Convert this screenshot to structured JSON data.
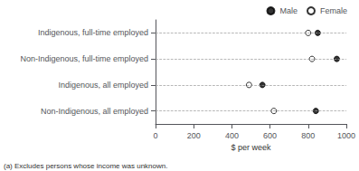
{
  "chart_data": {
    "type": "scatter",
    "categories": [
      "Indigenous, full-time employed",
      "Non-Indigenous, full-time employed",
      "Indigenous, all employed",
      "Non-Indigenous, all employed"
    ],
    "series": [
      {
        "name": "Male",
        "color": "#000000",
        "marker": "circle",
        "values": [
          850,
          950,
          560,
          840
        ]
      },
      {
        "name": "Female",
        "color": "#000000",
        "marker": "open_circle",
        "values": [
          800,
          820,
          490,
          620
        ]
      }
    ],
    "xlabel": "$ per week",
    "xlim": [
      0,
      1000
    ],
    "xticks": [
      0,
      200,
      400,
      600,
      800,
      1000
    ],
    "grid": true,
    "legend": "upper right",
    "footnote": "(a) Excludes persons whose income was unknown."
  }
}
